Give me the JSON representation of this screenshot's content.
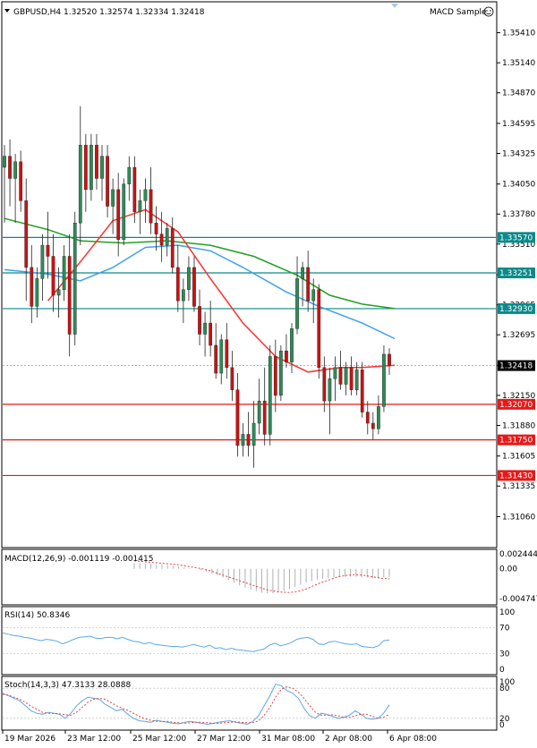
{
  "header": {
    "symbol_info": "GBPUSD,H4  1.32520 1.32574 1.32334 1.32418",
    "indicator_name": "MACD Sample",
    "smiley_icon": "smiley-face-icon"
  },
  "colors": {
    "bull": "#2e8b57",
    "bear": "#cc1111",
    "ma_fast": "#ff3030",
    "ma_mid": "#3fa0f0",
    "ma_slow": "#22a022",
    "support": "#e41a1a",
    "resistance": "#0a8a8a",
    "osc_blue": "#5aa8e6",
    "osc_red": "#e04040",
    "grid": "#c0c0c0"
  },
  "chart_data": [
    {
      "type": "candlestick",
      "title": "GBPUSD,H4",
      "ohlc_text": "1.32520 1.32574 1.32334 1.32418",
      "ylim": [
        1.3079,
        1.3568
      ],
      "price_ticks": [
        "1.35410",
        "1.35140",
        "1.34870",
        "1.34595",
        "1.34325",
        "1.34050",
        "1.33780",
        "1.33510",
        "1.33235",
        "1.32965",
        "1.32695",
        "1.32420",
        "1.32150",
        "1.31880",
        "1.31605",
        "1.31335",
        "1.31060"
      ],
      "current_price": "1.32418",
      "levels": [
        {
          "kind": "resistance",
          "value": 1.3357,
          "label": "1.33570"
        },
        {
          "kind": "resistance",
          "value": 1.33251,
          "label": "1.33251"
        },
        {
          "kind": "resistance",
          "value": 1.3293,
          "label": "1.32930"
        },
        {
          "kind": "support",
          "value": 1.3207,
          "label": "1.32070"
        },
        {
          "kind": "support",
          "value": 1.3175,
          "label": "1.31750"
        },
        {
          "kind": "support",
          "value": 1.3143,
          "label": "1.31430"
        }
      ],
      "x_labels": [
        "19 Mar 2026",
        "23 Mar 12:00",
        "25 Mar 12:00",
        "27 Mar 12:00",
        "31 Mar 08:00",
        "2 Apr 08:00",
        "6 Apr 08:00"
      ],
      "candles": [
        [
          1.342,
          1.344,
          1.337,
          1.343
        ],
        [
          1.343,
          1.3445,
          1.3385,
          1.341
        ],
        [
          1.341,
          1.3432,
          1.337,
          1.3425
        ],
        [
          1.3425,
          1.3435,
          1.338,
          1.339
        ],
        [
          1.339,
          1.341,
          1.33,
          1.333
        ],
        [
          1.333,
          1.335,
          1.328,
          1.3295
        ],
        [
          1.3295,
          1.333,
          1.3285,
          1.332
        ],
        [
          1.332,
          1.336,
          1.33,
          1.335
        ],
        [
          1.335,
          1.338,
          1.332,
          1.334
        ],
        [
          1.334,
          1.336,
          1.329,
          1.3305
        ],
        [
          1.3305,
          1.333,
          1.3285,
          1.331
        ],
        [
          1.331,
          1.335,
          1.33,
          1.334
        ],
        [
          1.334,
          1.336,
          1.325,
          1.327
        ],
        [
          1.327,
          1.338,
          1.326,
          1.337
        ],
        [
          1.337,
          1.3475,
          1.335,
          1.344
        ],
        [
          1.344,
          1.345,
          1.338,
          1.34
        ],
        [
          1.34,
          1.345,
          1.339,
          1.344
        ],
        [
          1.344,
          1.345,
          1.34,
          1.341
        ],
        [
          1.341,
          1.344,
          1.339,
          1.343
        ],
        [
          1.343,
          1.344,
          1.3375,
          1.3385
        ],
        [
          1.3385,
          1.341,
          1.336,
          1.34
        ],
        [
          1.34,
          1.3415,
          1.334,
          1.3355
        ],
        [
          1.3355,
          1.341,
          1.335,
          1.3405
        ],
        [
          1.3405,
          1.343,
          1.339,
          1.342
        ],
        [
          1.342,
          1.343,
          1.337,
          1.338
        ],
        [
          1.338,
          1.34,
          1.336,
          1.339
        ],
        [
          1.339,
          1.341,
          1.337,
          1.34
        ],
        [
          1.34,
          1.342,
          1.336,
          1.337
        ],
        [
          1.337,
          1.3385,
          1.3345,
          1.336
        ],
        [
          1.336,
          1.338,
          1.3335,
          1.335
        ],
        [
          1.335,
          1.337,
          1.334,
          1.3365
        ],
        [
          1.3365,
          1.3375,
          1.3325,
          1.333
        ],
        [
          1.333,
          1.335,
          1.329,
          1.33
        ],
        [
          1.33,
          1.332,
          1.328,
          1.331
        ],
        [
          1.331,
          1.334,
          1.33,
          1.333
        ],
        [
          1.333,
          1.334,
          1.329,
          1.3295
        ],
        [
          1.3295,
          1.331,
          1.326,
          1.327
        ],
        [
          1.327,
          1.329,
          1.325,
          1.328
        ],
        [
          1.328,
          1.33,
          1.325,
          1.326
        ],
        [
          1.326,
          1.328,
          1.323,
          1.3235
        ],
        [
          1.3235,
          1.327,
          1.3225,
          1.3265
        ],
        [
          1.3265,
          1.328,
          1.323,
          1.324
        ],
        [
          1.324,
          1.3255,
          1.321,
          1.322
        ],
        [
          1.322,
          1.3235,
          1.316,
          1.317
        ],
        [
          1.317,
          1.319,
          1.316,
          1.318
        ],
        [
          1.318,
          1.32,
          1.316,
          1.317
        ],
        [
          1.317,
          1.321,
          1.315,
          1.319
        ],
        [
          1.319,
          1.323,
          1.318,
          1.321
        ],
        [
          1.321,
          1.324,
          1.317,
          1.318
        ],
        [
          1.318,
          1.326,
          1.317,
          1.325
        ],
        [
          1.325,
          1.3265,
          1.32,
          1.3215
        ],
        [
          1.3215,
          1.326,
          1.321,
          1.3255
        ],
        [
          1.3255,
          1.327,
          1.324,
          1.3245
        ],
        [
          1.3245,
          1.328,
          1.3235,
          1.3275
        ],
        [
          1.3275,
          1.334,
          1.327,
          1.332
        ],
        [
          1.332,
          1.3335,
          1.3295,
          1.333
        ],
        [
          1.333,
          1.3345,
          1.329,
          1.33
        ],
        [
          1.33,
          1.332,
          1.328,
          1.331
        ],
        [
          1.331,
          1.3315,
          1.323,
          1.324
        ],
        [
          1.324,
          1.325,
          1.32,
          1.321
        ],
        [
          1.321,
          1.324,
          1.318,
          1.323
        ],
        [
          1.323,
          1.325,
          1.321,
          1.324
        ],
        [
          1.324,
          1.3255,
          1.322,
          1.3225
        ],
        [
          1.3225,
          1.3245,
          1.3215,
          1.324
        ],
        [
          1.324,
          1.325,
          1.3215,
          1.322
        ],
        [
          1.322,
          1.3245,
          1.3215,
          1.3238
        ],
        [
          1.3238,
          1.3245,
          1.3195,
          1.32
        ],
        [
          1.32,
          1.321,
          1.318,
          1.319
        ],
        [
          1.319,
          1.32,
          1.3175,
          1.3185
        ],
        [
          1.3185,
          1.3215,
          1.318,
          1.3205
        ],
        [
          1.3205,
          1.326,
          1.32,
          1.3252
        ],
        [
          1.3252,
          1.32574,
          1.32334,
          1.32418
        ]
      ],
      "ma_fast": [
        [
          8,
          1.33
        ],
        [
          14,
          1.3335
        ],
        [
          20,
          1.3372
        ],
        [
          26,
          1.3382
        ],
        [
          32,
          1.3362
        ],
        [
          38,
          1.332
        ],
        [
          44,
          1.328
        ],
        [
          50,
          1.325
        ],
        [
          56,
          1.3236
        ],
        [
          62,
          1.324
        ],
        [
          66,
          1.324
        ],
        [
          72,
          1.3242
        ]
      ],
      "ma_mid": [
        [
          0,
          1.3328
        ],
        [
          8,
          1.3324
        ],
        [
          14,
          1.3318
        ],
        [
          20,
          1.333
        ],
        [
          26,
          1.3348
        ],
        [
          32,
          1.335
        ],
        [
          38,
          1.3345
        ],
        [
          44,
          1.333
        ],
        [
          52,
          1.3308
        ],
        [
          58,
          1.3295
        ],
        [
          66,
          1.328
        ],
        [
          72,
          1.3266
        ]
      ],
      "ma_slow": [
        [
          0,
          1.3374
        ],
        [
          8,
          1.3364
        ],
        [
          14,
          1.3354
        ],
        [
          22,
          1.3352
        ],
        [
          30,
          1.3354
        ],
        [
          38,
          1.335
        ],
        [
          46,
          1.334
        ],
        [
          54,
          1.3323
        ],
        [
          60,
          1.3305
        ],
        [
          66,
          1.3297
        ],
        [
          72,
          1.3293
        ]
      ]
    },
    {
      "type": "macd",
      "label": "MACD(12,26,9) -0.001119 -0.001415",
      "ylim": [
        -0.004747,
        0.002444
      ],
      "ticks": [
        "0.002444",
        "0.00",
        "-0.004747"
      ],
      "histogram": [
        0.0008,
        0.0008,
        0.0007,
        0.0007,
        0.0006,
        0.0006,
        0.0005,
        0.0004,
        0.0003,
        0.0002,
        0.0001,
        0.0,
        -0.0002,
        -0.0004,
        -0.0006,
        -0.0009,
        -0.0012,
        -0.0016,
        -0.0019,
        -0.0023,
        -0.0026,
        -0.0029,
        -0.0031,
        -0.0033,
        -0.0034,
        -0.0034,
        -0.0033,
        -0.0031,
        -0.0028,
        -0.0025,
        -0.0022,
        -0.0019,
        -0.0017,
        -0.0015,
        -0.0014,
        -0.0013,
        -0.0012,
        -0.0012,
        -0.0011,
        -0.0011,
        -0.0011,
        -0.0012,
        -0.0012,
        -0.0013,
        -0.0013,
        -0.0012,
        -0.0011
      ],
      "signal": [
        0.0011,
        0.001,
        0.0009,
        0.0008,
        0.0007,
        0.0006,
        0.0004,
        0.0002,
        0.0,
        -0.0003,
        -0.0007,
        -0.0011,
        -0.0015,
        -0.0019,
        -0.0023,
        -0.0027,
        -0.003,
        -0.0032,
        -0.0033,
        -0.0032,
        -0.0029,
        -0.0024,
        -0.0019,
        -0.0015,
        -0.0011,
        -0.0009,
        -0.0008,
        -0.0009,
        -0.0011,
        -0.0013,
        -0.0014
      ]
    },
    {
      "type": "line",
      "label": "RSI(14) 50.8346",
      "ylim": [
        0,
        100
      ],
      "ticks": [
        "100",
        "70",
        "30",
        "0"
      ],
      "values": [
        62,
        60,
        58,
        57,
        55,
        54,
        52,
        50,
        52,
        51,
        49,
        45,
        48,
        52,
        55,
        56,
        57,
        54,
        53,
        55,
        55,
        53,
        55,
        52,
        49,
        48,
        45,
        47,
        44,
        43,
        42,
        41,
        41,
        40,
        42,
        44,
        42,
        40,
        43,
        38,
        39,
        36,
        38,
        36,
        35,
        34,
        33,
        35,
        37,
        43,
        46,
        42,
        44,
        47,
        52,
        54,
        55,
        52,
        45,
        44,
        48,
        49,
        47,
        45,
        44,
        45,
        41,
        40,
        39,
        42,
        50,
        51
      ]
    },
    {
      "type": "line",
      "label": "Stoch(14,3,3) 47.3133 28.0888",
      "ylim": [
        0,
        100
      ],
      "ticks": [
        "100",
        "80",
        "20",
        "0"
      ],
      "main": [
        70,
        65,
        60,
        55,
        45,
        35,
        30,
        28,
        32,
        30,
        28,
        20,
        30,
        45,
        55,
        62,
        60,
        58,
        48,
        42,
        35,
        38,
        28,
        20,
        15,
        14,
        12,
        16,
        14,
        12,
        10,
        9,
        12,
        14,
        12,
        10,
        8,
        10,
        12,
        14,
        15,
        12,
        10,
        8,
        14,
        25,
        45,
        65,
        88,
        85,
        75,
        70,
        60,
        40,
        25,
        20,
        30,
        28,
        24,
        20,
        22,
        26,
        35,
        28,
        20,
        18,
        20,
        30,
        47
      ],
      "signal": [
        68,
        66,
        62,
        58,
        52,
        44,
        38,
        32,
        30,
        30,
        29,
        27,
        26,
        32,
        42,
        52,
        58,
        60,
        58,
        52,
        45,
        40,
        36,
        30,
        24,
        19,
        16,
        14,
        14,
        14,
        12,
        11,
        10,
        11,
        12,
        12,
        11,
        10,
        10,
        11,
        12,
        13,
        12,
        11,
        11,
        15,
        26,
        42,
        62,
        78,
        83,
        80,
        72,
        60,
        45,
        32,
        26,
        26,
        27,
        25,
        22,
        22,
        25,
        28,
        28,
        24,
        20,
        22,
        28
      ]
    }
  ]
}
